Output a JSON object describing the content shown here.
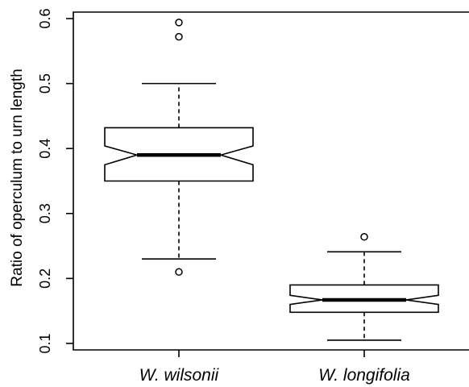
{
  "chart_data": {
    "type": "boxplot",
    "notched": true,
    "title": "",
    "xlabel": "",
    "ylabel": "Ratio of operculum to urn length",
    "ylim": [
      0.09,
      0.61
    ],
    "yticks": [
      "0.1",
      "0.2",
      "0.3",
      "0.4",
      "0.5",
      "0.6"
    ],
    "categories": [
      "W. wilsonii",
      "W. longifolia"
    ],
    "series": [
      {
        "category": "W. wilsonii",
        "whisker_low": 0.23,
        "q1": 0.35,
        "median": 0.39,
        "q3": 0.432,
        "whisker_high": 0.5,
        "notch_low": 0.375,
        "notch_high": 0.404,
        "outliers": [
          0.21,
          0.572,
          0.594
        ]
      },
      {
        "category": "W. longifolia",
        "whisker_low": 0.105,
        "q1": 0.148,
        "median": 0.167,
        "q3": 0.19,
        "whisker_high": 0.241,
        "notch_low": 0.16,
        "notch_high": 0.174,
        "outliers": [
          0.264
        ]
      }
    ],
    "colors": {
      "box_fill": "#ffffff",
      "stroke": "#000000"
    }
  }
}
